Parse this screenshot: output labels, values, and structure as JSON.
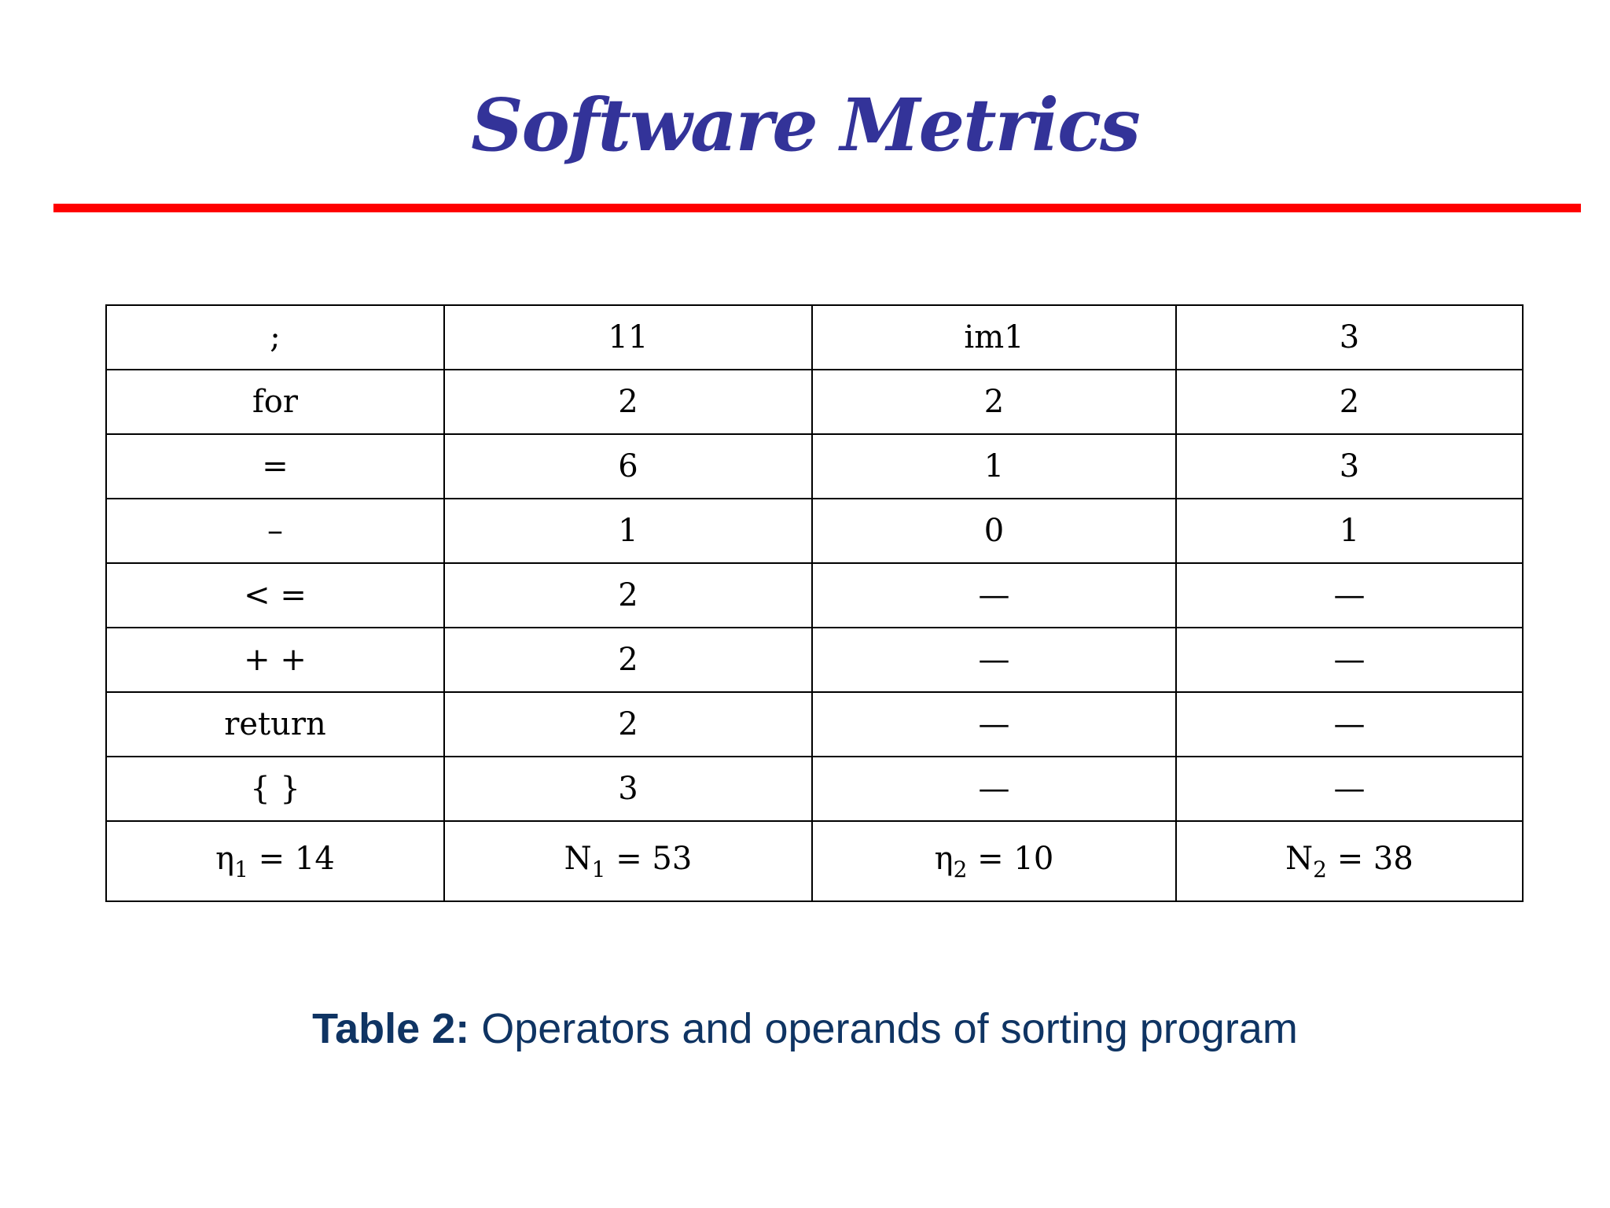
{
  "slide": {
    "title": "Software Metrics"
  },
  "table": {
    "rows": [
      [
        "; ",
        "11",
        "im1",
        "3"
      ],
      [
        "for",
        "2",
        "2",
        "2"
      ],
      [
        "=",
        "6",
        "1",
        "3"
      ],
      [
        "–",
        "1",
        "0",
        "1"
      ],
      [
        "< =",
        "2",
        "—",
        "—"
      ],
      [
        "+ +",
        "2",
        "—",
        "—"
      ],
      [
        "return",
        "2",
        "—",
        "—"
      ],
      [
        "{ }",
        "3",
        "—",
        "—"
      ]
    ],
    "totals": [
      {
        "symbol": "η",
        "subscript": "1",
        "value": " = 14"
      },
      {
        "symbol": "N",
        "subscript": "1",
        "value": " = 53"
      },
      {
        "symbol": "η",
        "subscript": "2",
        "value": " = 10"
      },
      {
        "symbol": "N",
        "subscript": "2",
        "value": " = 38"
      }
    ]
  },
  "caption": {
    "label": "Table 2:",
    "text": " Operators and operands of sorting program"
  }
}
